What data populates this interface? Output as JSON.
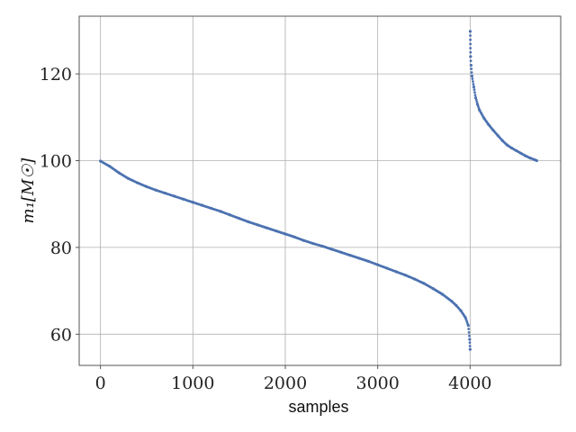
{
  "chart_data": {
    "type": "scatter",
    "xlabel": "samples",
    "ylabel": "m₁[M☉]",
    "xlim": [
      -230,
      4980
    ],
    "ylim": [
      52.8,
      133.3
    ],
    "x_ticks": [
      0,
      1000,
      2000,
      3000,
      4000
    ],
    "y_ticks": [
      60,
      80,
      100,
      120
    ],
    "grid": true,
    "legend": "none",
    "colors": {
      "series": "#4c72b0",
      "grid": "#b0b0b0",
      "frame": "#555555"
    },
    "series": [
      {
        "x": [
          0,
          100,
          200,
          300,
          400,
          500,
          600,
          700,
          800,
          900,
          1000,
          1100,
          1200,
          1300,
          1400,
          1500,
          1600,
          1700,
          1800,
          1900,
          2000,
          2100,
          2200,
          2300,
          2400,
          2500,
          2600,
          2700,
          2800,
          2900,
          3000,
          3100,
          3200,
          3300,
          3400,
          3500,
          3600,
          3700,
          3800,
          3850,
          3900,
          3950,
          3980,
          3995,
          4000,
          4001,
          4005,
          4010,
          4020,
          4040,
          4060,
          4080,
          4100,
          4150,
          4200,
          4250,
          4300,
          4350,
          4400,
          4450,
          4500,
          4550,
          4600,
          4650,
          4700,
          4720
        ],
        "y": [
          99.9,
          98.7,
          97.2,
          95.9,
          94.9,
          94.0,
          93.2,
          92.5,
          91.8,
          91.1,
          90.4,
          89.7,
          89.0,
          88.3,
          87.5,
          86.7,
          85.9,
          85.2,
          84.5,
          83.8,
          83.1,
          82.4,
          81.6,
          80.9,
          80.3,
          79.6,
          78.9,
          78.2,
          77.5,
          76.8,
          76.0,
          75.2,
          74.4,
          73.6,
          72.7,
          71.7,
          70.5,
          69.2,
          67.6,
          66.6,
          65.4,
          63.8,
          62.0,
          58.8,
          56.5,
          129.8,
          124.0,
          122.0,
          119.5,
          117.0,
          114.5,
          113.0,
          111.7,
          109.8,
          108.3,
          107.0,
          105.8,
          104.6,
          103.6,
          102.9,
          102.3,
          101.7,
          101.1,
          100.6,
          100.2,
          100.0
        ]
      }
    ]
  }
}
